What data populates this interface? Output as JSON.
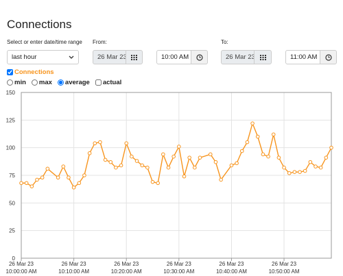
{
  "header": {
    "title": "Connections"
  },
  "range": {
    "label": "Select or enter date/time range",
    "selected": "last hour"
  },
  "from": {
    "label": "From:",
    "date": "26 Mar 23",
    "time": "10:00 AM"
  },
  "to": {
    "label": "To:",
    "date": "26 Mar 23",
    "time": "11:00 AM"
  },
  "series_toggle": {
    "label": "Connections",
    "checked": true
  },
  "options": [
    {
      "label": "min",
      "checked": false
    },
    {
      "label": "max",
      "checked": false
    },
    {
      "label": "average",
      "checked": true
    }
  ],
  "actual": {
    "label": "actual",
    "checked": false
  },
  "chart_data": {
    "type": "line",
    "x": [
      0,
      1,
      2,
      3,
      4,
      5,
      7,
      8,
      9,
      10,
      11,
      12,
      13,
      14,
      15,
      16,
      17,
      18,
      19,
      20,
      21,
      22,
      23,
      24,
      25,
      26,
      27,
      28,
      29,
      30,
      31,
      32,
      33,
      34,
      36,
      37,
      38,
      40,
      41,
      42,
      43,
      44,
      45,
      46,
      47,
      48,
      49,
      50,
      51,
      52,
      53,
      54,
      55,
      56,
      57,
      58,
      59
    ],
    "series": [
      {
        "name": "Connections",
        "color": "#f7941d",
        "values": [
          68,
          68,
          65,
          71,
          73,
          81,
          73,
          83,
          73,
          64,
          68,
          75,
          95,
          104,
          105,
          89,
          87,
          82,
          84,
          104,
          92,
          88,
          84,
          82,
          69,
          68,
          94,
          82,
          92,
          101,
          74,
          91,
          82,
          91,
          94,
          87,
          71,
          84,
          86,
          97,
          105,
          122,
          110,
          94,
          92,
          112,
          91,
          82,
          77,
          78,
          78,
          79,
          87,
          83,
          82,
          91,
          100
        ]
      }
    ],
    "xlim": [
      0,
      59
    ],
    "xticks": [
      {
        "value": 0,
        "label": [
          "26 Mar 23",
          "10:00:00 AM"
        ]
      },
      {
        "value": 10,
        "label": [
          "26 Mar 23",
          "10:10:00 AM"
        ]
      },
      {
        "value": 20,
        "label": [
          "26 Mar 23",
          "10:20:00 AM"
        ]
      },
      {
        "value": 30,
        "label": [
          "26 Mar 23",
          "10:30:00 AM"
        ]
      },
      {
        "value": 40,
        "label": [
          "26 Mar 23",
          "10:40:00 AM"
        ]
      },
      {
        "value": 50,
        "label": [
          "26 Mar 23",
          "10:50:00 AM"
        ]
      }
    ],
    "ylim": [
      0,
      150
    ],
    "yticks": [
      0,
      25,
      50,
      75,
      100,
      125,
      150
    ],
    "grid": true
  }
}
